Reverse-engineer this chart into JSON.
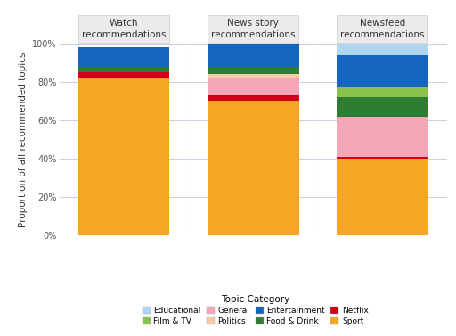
{
  "categories": [
    "Watch\nrecommendations",
    "News story\nrecommendations",
    "Newsfeed\nrecommendations"
  ],
  "series": {
    "Sport": [
      0.82,
      0.7,
      0.4
    ],
    "Netflix": [
      0.03,
      0.03,
      0.01
    ],
    "General": [
      0.0,
      0.09,
      0.21
    ],
    "Politics": [
      0.0,
      0.02,
      0.0
    ],
    "Food & Drink": [
      0.03,
      0.04,
      0.1
    ],
    "Film & TV": [
      0.0,
      0.0,
      0.05
    ],
    "Entertainment": [
      0.1,
      0.12,
      0.17
    ],
    "Educational": [
      0.0,
      0.0,
      0.06
    ]
  },
  "colors": {
    "Sport": "#F5A623",
    "Netflix": "#D0021B",
    "General": "#F4A7B9",
    "Politics": "#F5CBA7",
    "Food & Drink": "#2E7D32",
    "Film & TV": "#8BC34A",
    "Entertainment": "#1565C0",
    "Educational": "#AED6F1"
  },
  "stack_order": [
    "Sport",
    "Netflix",
    "General",
    "Politics",
    "Food & Drink",
    "Film & TV",
    "Entertainment",
    "Educational"
  ],
  "legend_top": [
    "Educational",
    "Film & TV",
    "General",
    "Politics"
  ],
  "legend_bot": [
    "Entertainment",
    "Food & Drink",
    "Netflix",
    "Sport"
  ],
  "legend_colors": {
    "Educational": "#AED6F1",
    "Film & TV": "#8BC34A",
    "General": "#F4A7B9",
    "Politics": "#F5CBA7",
    "Entertainment": "#1565C0",
    "Food & Drink": "#2E7D32",
    "Netflix": "#D0021B",
    "Sport": "#F5A623"
  },
  "ylabel": "Proportion of all recommended topics",
  "legend_title": "Topic Category",
  "background_color": "#FFFFFF",
  "panel_bg": "#EBEBEB",
  "yticks": [
    0.0,
    0.2,
    0.4,
    0.6,
    0.8,
    1.0
  ],
  "ytick_labels": [
    "0%",
    "20%",
    "40%",
    "60%",
    "80%",
    "100%"
  ]
}
